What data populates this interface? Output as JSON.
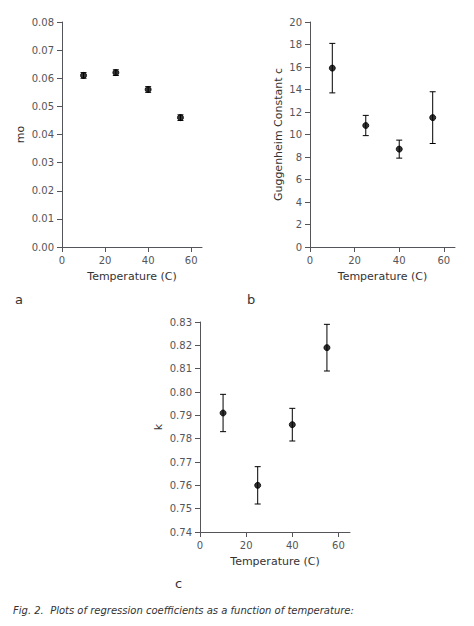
{
  "chart_data": [
    {
      "type": "scatter",
      "title": "a",
      "xlabel": "Temperature (C)",
      "ylabel": "mo",
      "x": [
        10,
        25,
        40,
        55
      ],
      "values": [
        0.061,
        0.062,
        0.056,
        0.046
      ],
      "yerr": [
        0.001,
        0.001,
        0.001,
        0.001
      ],
      "xlim": [
        0,
        65
      ],
      "ylim": [
        0,
        0.08
      ],
      "xticks": [
        0,
        20,
        40,
        60
      ],
      "yticks": [
        {
          "value": 0,
          "label": "0.00"
        },
        0.01,
        0.02,
        0.03,
        0.04,
        0.05,
        0.06,
        0.07,
        0.08
      ],
      "color": "black",
      "marker": "circle",
      "grid": false
    },
    {
      "type": "scatter",
      "title": "b",
      "xlabel": "Temperature (C)",
      "ylabel": "Guggenheim Constant c",
      "x": [
        10,
        25,
        40,
        55
      ],
      "values": [
        15.9,
        10.8,
        8.7,
        11.5
      ],
      "yerr_lo": [
        2.2,
        0.9,
        0.8,
        2.3
      ],
      "yerr_hi": [
        2.2,
        0.9,
        0.8,
        2.3
      ],
      "xlim": [
        0,
        65
      ],
      "ylim": [
        0,
        20
      ],
      "xticks": [
        0,
        20,
        40,
        60
      ],
      "yticks": [
        0,
        2,
        4,
        6,
        8,
        10,
        12,
        14,
        16,
        18,
        20
      ],
      "color": "black",
      "marker": "circle",
      "grid": false
    },
    {
      "type": "scatter",
      "title": "c",
      "xlabel": "Temperature (C)",
      "ylabel": "k",
      "x": [
        10,
        25,
        40,
        55
      ],
      "values": [
        0.791,
        0.76,
        0.786,
        0.819
      ],
      "yerr_lo": [
        0.008,
        0.008,
        0.007,
        0.01
      ],
      "yerr_hi": [
        0.008,
        0.008,
        0.007,
        0.01
      ],
      "xlim": [
        0,
        65
      ],
      "ylim": [
        0.74,
        0.83
      ],
      "xticks": [
        0,
        20,
        40,
        60
      ],
      "yticks": [
        0.74,
        0.75,
        0.76,
        0.77,
        0.78,
        0.79,
        {
          "value": 0.8,
          "label": "0.80"
        },
        0.81,
        0.82,
        0.83
      ],
      "color": "black",
      "marker": "circle",
      "grid": false,
      "annotations": [
        "Fig. 2.  Plots of regression coefficients as a function of temperature:"
      ]
    }
  ]
}
